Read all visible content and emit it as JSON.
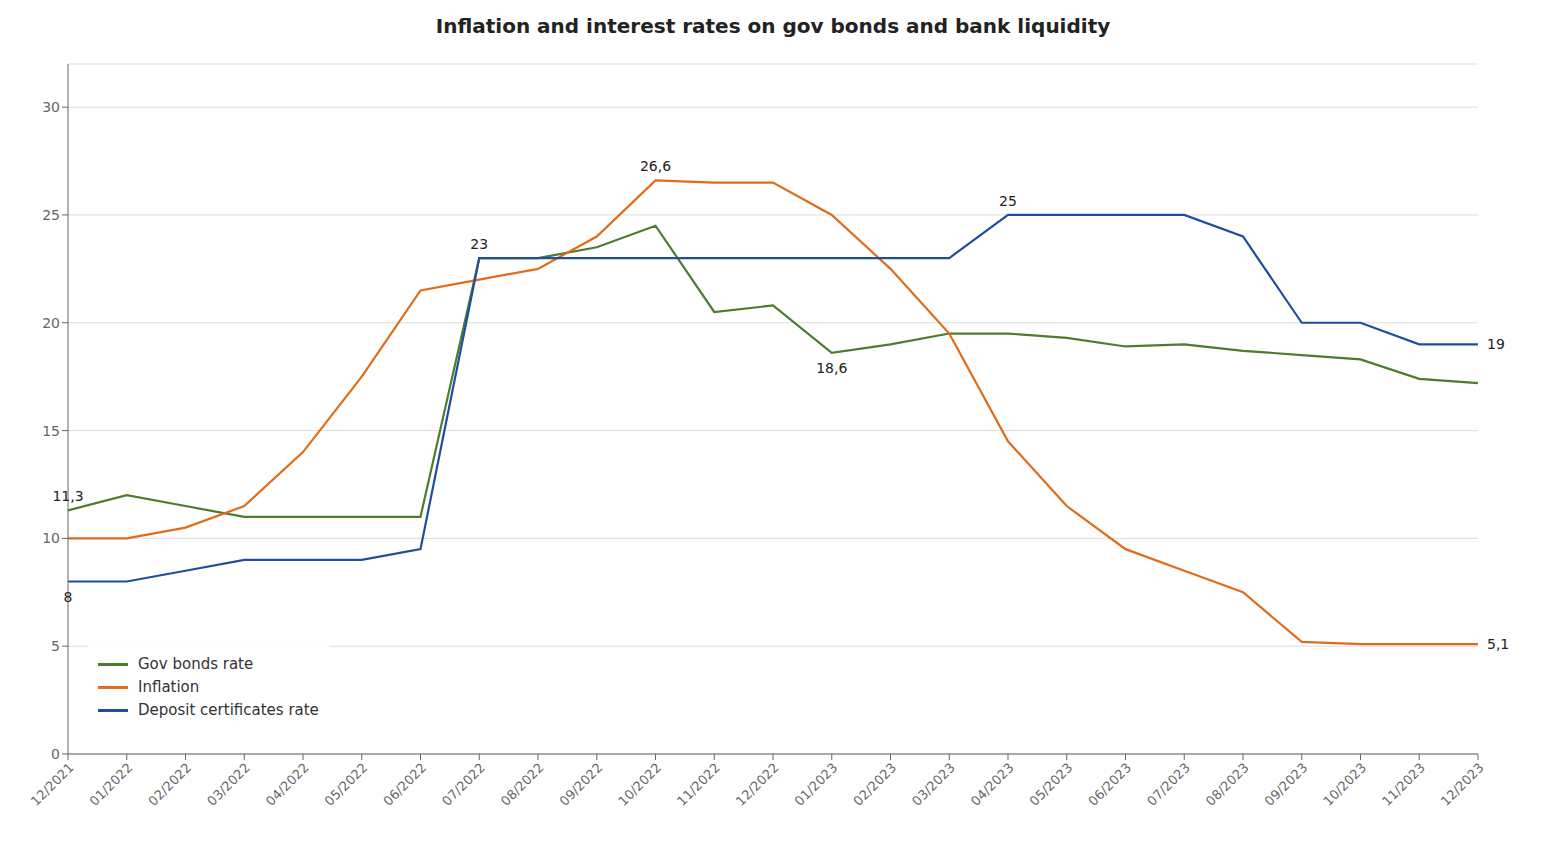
{
  "chart_data": {
    "type": "line",
    "title": "Inflation and interest rates on gov bonds and bank liquidity",
    "categories": [
      "12/2021",
      "01/2022",
      "02/2022",
      "03/2022",
      "04/2022",
      "05/2022",
      "06/2022",
      "07/2022",
      "08/2022",
      "09/2022",
      "10/2022",
      "11/2022",
      "12/2022",
      "01/2023",
      "02/2023",
      "03/2023",
      "04/2023",
      "05/2023",
      "06/2023",
      "07/2023",
      "08/2023",
      "09/2023",
      "10/2023",
      "11/2023",
      "12/2023"
    ],
    "series": [
      {
        "name": "Gov bonds rate",
        "color": "#4d7c2e",
        "values": [
          11.3,
          12.0,
          11.5,
          11.0,
          11.0,
          11.0,
          11.0,
          23.0,
          23.0,
          23.5,
          24.5,
          20.5,
          20.8,
          18.6,
          19.0,
          19.5,
          19.5,
          19.3,
          18.9,
          19.0,
          18.7,
          18.5,
          18.3,
          17.4,
          17.2
        ]
      },
      {
        "name": "Inflation",
        "color": "#e06c1a",
        "values": [
          10.0,
          10.0,
          10.5,
          11.5,
          14.0,
          17.5,
          21.5,
          22.0,
          22.5,
          24.0,
          26.6,
          26.5,
          26.5,
          25.0,
          22.5,
          19.5,
          14.5,
          11.5,
          9.5,
          8.5,
          7.5,
          5.2,
          5.1,
          5.1,
          5.1
        ]
      },
      {
        "name": "Deposit certificates rate",
        "color": "#1f4e9e",
        "values": [
          8.0,
          8.0,
          8.5,
          9.0,
          9.0,
          9.0,
          9.5,
          23.0,
          23.0,
          23.0,
          23.0,
          23.0,
          23.0,
          23.0,
          23.0,
          23.0,
          25.0,
          25.0,
          25.0,
          25.0,
          24.0,
          20.0,
          20.0,
          19.0,
          19.0
        ]
      }
    ],
    "ylim": [
      0,
      32
    ],
    "yticks": [
      0,
      5,
      10,
      15,
      20,
      25,
      30
    ],
    "grid": true,
    "legend": "lower left",
    "annotations": [
      {
        "series": "Gov bonds rate",
        "x": "12/2021",
        "text": "11,3"
      },
      {
        "series": "Gov bonds rate",
        "x": "07/2022",
        "text": "23"
      },
      {
        "series": "Gov bonds rate",
        "x": "01/2023",
        "text": "18,6"
      },
      {
        "series": "Inflation",
        "x": "10/2022",
        "text": "26,6"
      },
      {
        "series": "Deposit certificates rate",
        "x": "12/2021",
        "text": "8"
      },
      {
        "series": "Deposit certificates rate",
        "x": "04/2023",
        "text": "25"
      },
      {
        "series": "Deposit certificates rate",
        "x": "12/2023",
        "text": "19"
      },
      {
        "series": "Inflation",
        "x": "12/2023",
        "text": "5,1"
      }
    ]
  }
}
